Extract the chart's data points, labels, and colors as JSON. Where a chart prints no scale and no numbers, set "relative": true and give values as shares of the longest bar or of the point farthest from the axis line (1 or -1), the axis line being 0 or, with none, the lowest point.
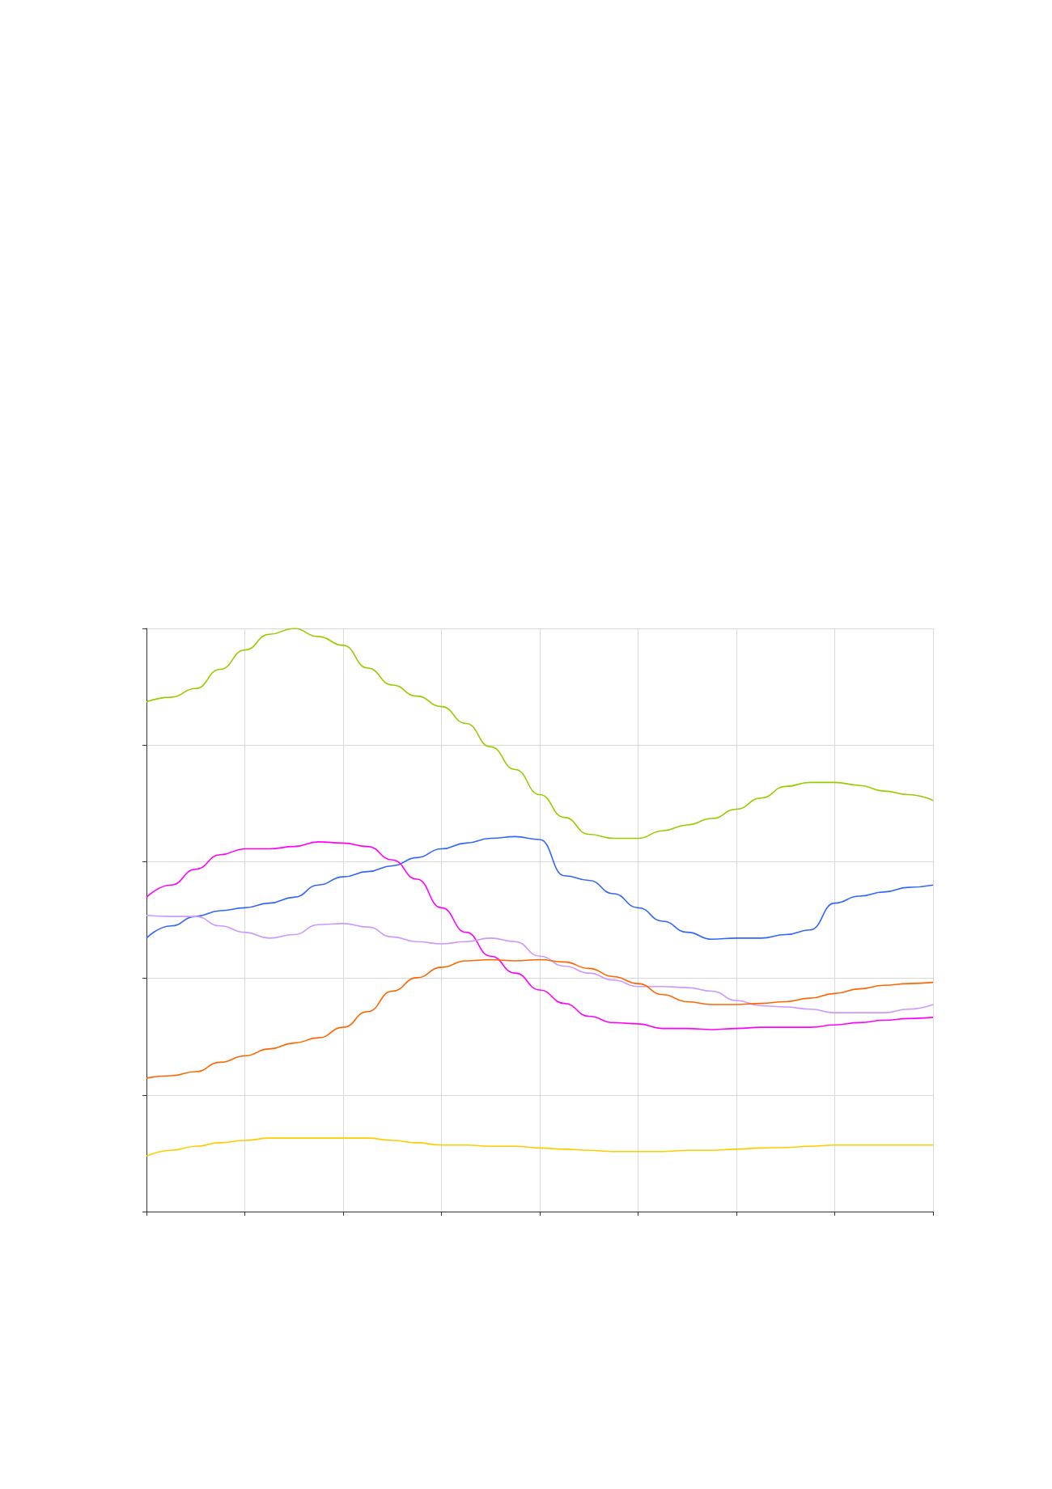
{
  "chart_data": {
    "type": "line",
    "relative": true,
    "grid": true,
    "marker": "none",
    "line_style": "solid",
    "categories": [
      null,
      null,
      null,
      null,
      null,
      null,
      null,
      null,
      null,
      null,
      null,
      null,
      null,
      null,
      null,
      null,
      null,
      null,
      null,
      null,
      null,
      null,
      null,
      null,
      null,
      null,
      null,
      null,
      null,
      null,
      null,
      null,
      null
    ],
    "series": [
      {
        "color": "#99cc00",
        "values": [
          0.874,
          0.882,
          0.897,
          0.93,
          0.963,
          0.99,
          1,
          0.986,
          0.971,
          0.932,
          0.903,
          0.884,
          0.866,
          0.837,
          0.797,
          0.758,
          0.715,
          0.676,
          0.647,
          0.64,
          0.64,
          0.653,
          0.663,
          0.674,
          0.69,
          0.709,
          0.729,
          0.736,
          0.736,
          0.731,
          0.721,
          0.715,
          0.705
        ]
      },
      {
        "color": "#3366ff",
        "values": [
          0.469,
          0.49,
          0.506,
          0.516,
          0.521,
          0.529,
          0.539,
          0.56,
          0.574,
          0.583,
          0.593,
          0.607,
          0.622,
          0.632,
          0.64,
          0.643,
          0.638,
          0.576,
          0.568,
          0.545,
          0.521,
          0.498,
          0.479,
          0.467,
          0.469,
          0.469,
          0.475,
          0.483,
          0.529,
          0.541,
          0.548,
          0.556,
          0.56
        ]
      },
      {
        "color": "#ff00ff",
        "values": [
          0.539,
          0.56,
          0.587,
          0.612,
          0.622,
          0.622,
          0.626,
          0.634,
          0.632,
          0.626,
          0.603,
          0.57,
          0.521,
          0.479,
          0.438,
          0.409,
          0.38,
          0.357,
          0.335,
          0.324,
          0.322,
          0.314,
          0.314,
          0.312,
          0.314,
          0.316,
          0.316,
          0.316,
          0.32,
          0.324,
          0.328,
          0.331,
          0.333
        ]
      },
      {
        "color": "#cc99ff",
        "values": [
          0.508,
          0.506,
          0.506,
          0.49,
          0.479,
          0.469,
          0.475,
          0.492,
          0.494,
          0.488,
          0.471,
          0.463,
          0.459,
          0.463,
          0.469,
          0.463,
          0.438,
          0.421,
          0.409,
          0.397,
          0.386,
          0.386,
          0.384,
          0.378,
          0.362,
          0.353,
          0.351,
          0.347,
          0.341,
          0.341,
          0.341,
          0.347,
          0.355
        ]
      },
      {
        "color": "#ff6600",
        "values": [
          0.229,
          0.233,
          0.24,
          0.256,
          0.267,
          0.279,
          0.289,
          0.298,
          0.316,
          0.343,
          0.378,
          0.401,
          0.419,
          0.43,
          0.432,
          0.43,
          0.432,
          0.428,
          0.417,
          0.403,
          0.391,
          0.372,
          0.36,
          0.355,
          0.355,
          0.357,
          0.36,
          0.366,
          0.374,
          0.382,
          0.388,
          0.391,
          0.393
        ]
      },
      {
        "color": "#ffcc00",
        "values": [
          0.095,
          0.105,
          0.112,
          0.118,
          0.122,
          0.126,
          0.126,
          0.126,
          0.126,
          0.126,
          0.122,
          0.118,
          0.114,
          0.114,
          0.112,
          0.112,
          0.109,
          0.107,
          0.105,
          0.103,
          0.103,
          0.103,
          0.105,
          0.105,
          0.107,
          0.109,
          0.11,
          0.112,
          0.114,
          0.114,
          0.114,
          0.114,
          0.114
        ]
      }
    ]
  }
}
